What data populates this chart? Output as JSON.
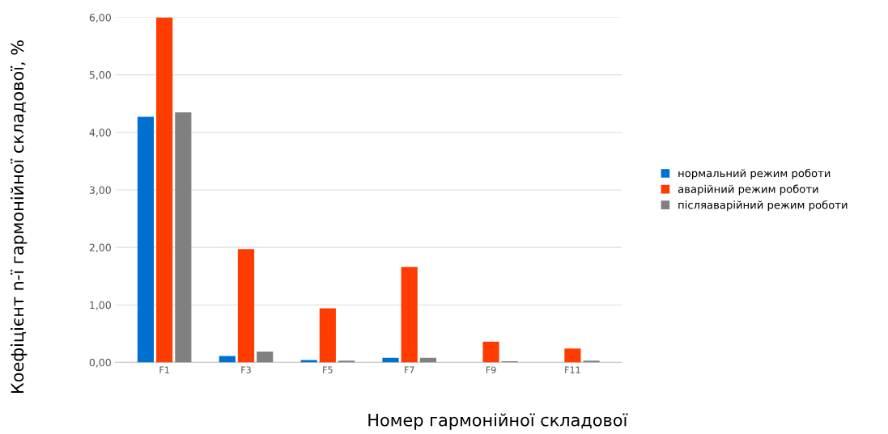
{
  "chart_data": {
    "type": "bar",
    "xlabel": "Номер гармонійної складової",
    "ylabel": "Коефіцієнт n-ї гармонійної складової, %",
    "categories": [
      "F1",
      "F3",
      "F5",
      "F7",
      "F9",
      "F11"
    ],
    "series": [
      {
        "name": "нормальний режим роботи",
        "color": "#0070d0",
        "values": [
          4.27,
          0.11,
          0.04,
          0.08,
          0,
          0
        ]
      },
      {
        "name": "аварійний режим роботи",
        "color": "#ff3c00",
        "values": [
          6.0,
          1.97,
          0.94,
          1.66,
          0.36,
          0.24
        ]
      },
      {
        "name": "післяаварійний режим роботи",
        "color": "#808080",
        "values": [
          4.35,
          0.19,
          0.03,
          0.08,
          0.02,
          0.03
        ]
      }
    ],
    "ylim": [
      0,
      6
    ],
    "yticks": [
      {
        "value": 0,
        "label": "0,00"
      },
      {
        "value": 1,
        "label": "1,00"
      },
      {
        "value": 2,
        "label": "2,00"
      },
      {
        "value": 3,
        "label": "3,00"
      },
      {
        "value": 4,
        "label": "4,00"
      },
      {
        "value": 5,
        "label": "5,00"
      },
      {
        "value": 6,
        "label": "6,00"
      }
    ],
    "grid": "y",
    "legend": "right"
  }
}
